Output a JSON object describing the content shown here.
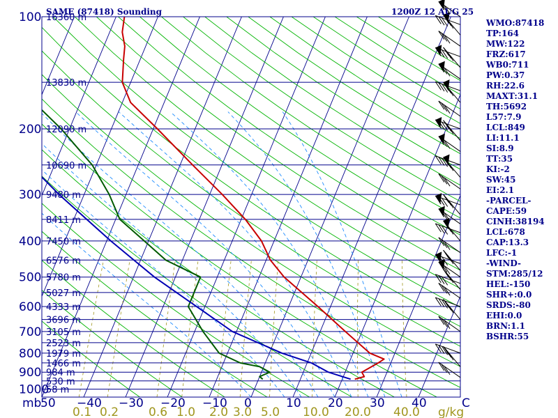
{
  "header": {
    "title": "SAME (87418) Sounding",
    "time": "1200Z 12 AUG 25"
  },
  "colors": {
    "isobar": "#00008b",
    "isotherm": "#00008b",
    "dry_adiabat": "#00b400",
    "moist_adiabat": "#1e8cff",
    "mixing_ratio": "#a0961e",
    "temperature": "#c80000",
    "dewpoint": "#005a00",
    "parcel": "#0000b4",
    "wind_barb": "#000000"
  },
  "axis": {
    "corner_label": "mb",
    "p_labels": [
      "100",
      "200",
      "300",
      "400",
      "500",
      "600",
      "700",
      "800",
      "900",
      "1000"
    ],
    "t_labels": [
      "50",
      "−40",
      "−30",
      "−20",
      "−10",
      "0",
      "10",
      "20",
      "30",
      "40",
      "C"
    ],
    "mixing_labels": [
      "0.1",
      "0.2",
      "0.6",
      "1.0",
      "2.0",
      "3.0",
      "5.0",
      "10.0",
      "20.0",
      "40.0",
      "g/kg"
    ]
  },
  "indices": {
    "wmo": "WMO:87418",
    "tp": "TP:164",
    "mw": "MW:122",
    "frz": "FRZ:617",
    "wb0": "WB0:711",
    "pw": "PW:0.37",
    "rh": "RH:22.6",
    "maxt": "MAXT:31.1",
    "th": "TH:5692",
    "l57": "L57:7.9",
    "lcl": "LCL:849",
    "li": "LI:11.1",
    "si": "SI:8.9",
    "tt": "TT:35",
    "ki": "KI:-2",
    "sw": "SW:45",
    "ei": "EI:2.1",
    "parcel_header": "-PARCEL-",
    "cape": "CAPE:59",
    "cinh": "CINH:38194",
    "lcl_parcel": "LCL:678",
    "cap": "CAP:13.3",
    "lfc": "LFC:-1",
    "wind_header": "-WIND-",
    "stm": "STM:285/12",
    "hel": "HEL:-150",
    "shr": "SHR+:0.0",
    "srds": "SRDS:-80",
    "ehi": "EHI:0.0",
    "brn": "BRN:1.1",
    "bshr": "BSHR:55"
  },
  "chart_data": {
    "type": "line",
    "title": "SAME (87418) Sounding",
    "subtitle": "1200Z 12 AUG 25",
    "xlabel": "C",
    "ylabel": "mb",
    "xlim": [
      -50,
      50
    ],
    "ylim": [
      1050,
      100
    ],
    "y_scale": "log",
    "grid": true,
    "isobars": [
      100,
      150,
      200,
      250,
      300,
      350,
      400,
      450,
      500,
      550,
      600,
      650,
      700,
      750,
      800,
      850,
      900,
      950,
      1000
    ],
    "height_labels": [
      {
        "p": 100,
        "label": "16360 m"
      },
      {
        "p": 150,
        "label": "13830 m"
      },
      {
        "p": 200,
        "label": "12090 m"
      },
      {
        "p": 250,
        "label": "10690 m"
      },
      {
        "p": 300,
        "label": "9480 m"
      },
      {
        "p": 350,
        "label": "8411 m"
      },
      {
        "p": 400,
        "label": "7450 m"
      },
      {
        "p": 450,
        "label": "6576 m"
      },
      {
        "p": 500,
        "label": "5780 m"
      },
      {
        "p": 550,
        "label": "5027 m"
      },
      {
        "p": 600,
        "label": "4333 m"
      },
      {
        "p": 650,
        "label": "3696 m"
      },
      {
        "p": 700,
        "label": "3105 m"
      },
      {
        "p": 750,
        "label": "2523 m"
      },
      {
        "p": 800,
        "label": "1979 m"
      },
      {
        "p": 850,
        "label": "1466 m"
      },
      {
        "p": 900,
        "label": "984 m"
      },
      {
        "p": 950,
        "label": "530 m"
      },
      {
        "p": 1000,
        "label": "58 m"
      }
    ],
    "series": [
      {
        "name": "Temperature",
        "points": [
          {
            "p": 940,
            "t": 23
          },
          {
            "p": 925,
            "t": 25
          },
          {
            "p": 900,
            "t": 24
          },
          {
            "p": 850,
            "t": 27
          },
          {
            "p": 830,
            "t": 28
          },
          {
            "p": 800,
            "t": 24
          },
          {
            "p": 700,
            "t": 16
          },
          {
            "p": 600,
            "t": 7
          },
          {
            "p": 500,
            "t": -4
          },
          {
            "p": 450,
            "t": -9
          },
          {
            "p": 400,
            "t": -13
          },
          {
            "p": 350,
            "t": -19
          },
          {
            "p": 300,
            "t": -27
          },
          {
            "p": 250,
            "t": -37
          },
          {
            "p": 200,
            "t": -49
          },
          {
            "p": 170,
            "t": -58
          },
          {
            "p": 150,
            "t": -62
          },
          {
            "p": 130,
            "t": -64
          },
          {
            "p": 120,
            "t": -65
          },
          {
            "p": 110,
            "t": -67
          },
          {
            "p": 100,
            "t": -68
          }
        ]
      },
      {
        "name": "Dewpoint",
        "points": [
          {
            "p": 940,
            "t": 1
          },
          {
            "p": 925,
            "t": 0
          },
          {
            "p": 900,
            "t": 2
          },
          {
            "p": 870,
            "t": -1
          },
          {
            "p": 850,
            "t": -6
          },
          {
            "p": 800,
            "t": -12
          },
          {
            "p": 700,
            "t": -18
          },
          {
            "p": 600,
            "t": -24
          },
          {
            "p": 500,
            "t": -24
          },
          {
            "p": 450,
            "t": -34
          },
          {
            "p": 400,
            "t": -41
          },
          {
            "p": 350,
            "t": -49
          },
          {
            "p": 300,
            "t": -54
          },
          {
            "p": 250,
            "t": -61
          },
          {
            "p": 200,
            "t": -72
          },
          {
            "p": 150,
            "t": -88
          },
          {
            "p": 120,
            "t": -92
          },
          {
            "p": 100,
            "t": -96
          }
        ]
      },
      {
        "name": "Parcel",
        "points": [
          {
            "p": 940,
            "t": 22
          },
          {
            "p": 900,
            "t": 16
          },
          {
            "p": 850,
            "t": 11
          },
          {
            "p": 800,
            "t": 3
          },
          {
            "p": 700,
            "t": -11
          },
          {
            "p": 600,
            "t": -22
          },
          {
            "p": 500,
            "t": -35
          },
          {
            "p": 400,
            "t": -49
          },
          {
            "p": 300,
            "t": -66
          },
          {
            "p": 200,
            "t": -88
          },
          {
            "p": 150,
            "t": -100
          },
          {
            "p": 100,
            "t": -115
          }
        ]
      }
    ]
  }
}
